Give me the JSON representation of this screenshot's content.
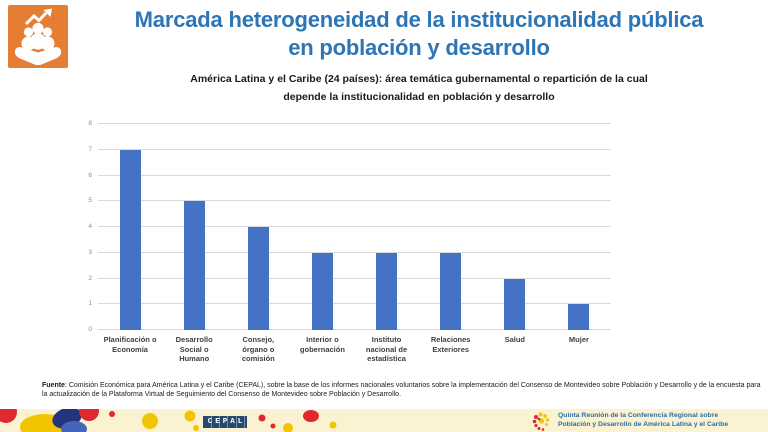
{
  "slide": {
    "title_line1": "Marcada heterogeneidad de la institucionalidad pública",
    "title_line2": "en población y desarrollo",
    "icons": {
      "top_left": "hand-holding-people-with-growth-arrow-icon"
    },
    "colors": {
      "title_blue": "#2E75B6",
      "bar_blue": "#4472C4",
      "icon_orange": "#E57E33",
      "footer_cream": "#FBF2D1",
      "cepal_navy": "#27496F",
      "deco_red": "#DD2A2E",
      "deco_yellow": "#F2C500",
      "gridline_gray": "#D9D9D9"
    }
  },
  "chart_data": {
    "type": "bar",
    "title_line1": "América Latina y el Caribe (24 países): área temática gubernamental o repartición de la cual",
    "title_line2": "depende la institucionalidad en población y desarrollo",
    "categories": [
      "Planificación o Economía",
      "Desarrollo Social o Humano",
      "Consejo, órgano o comisión",
      "Interior o gobernación",
      "Instituto nacional de estadística",
      "Relaciones Exteriores",
      "Salud",
      "Mujer"
    ],
    "values": [
      7,
      5,
      4,
      3,
      3,
      3,
      2,
      1
    ],
    "xlabel": "",
    "ylabel": "",
    "ylim": [
      0,
      8
    ],
    "ytick_interval": 1,
    "grid": true,
    "legend": false,
    "bar_color": "#4472C4"
  },
  "source": {
    "label": "Fuente",
    "text": ": Comisión Económica para América Latina y el Caribe (CEPAL), sobre la base de los informes nacionales voluntarios sobre la implementación del Consenso de Montevideo sobre Población y Desarrollo y de la encuesta para la actualización de la Plataforma Virtual de Seguimiento del Consenso de Montevideo sobre Población y Desarrollo."
  },
  "footer": {
    "cepal_logo_text": "CEPAL",
    "event_line1": "Quinta Reunión de la Conferencia Regional sobre",
    "event_line2": "Población y Desarrollo de América Latina y el Caribe"
  }
}
